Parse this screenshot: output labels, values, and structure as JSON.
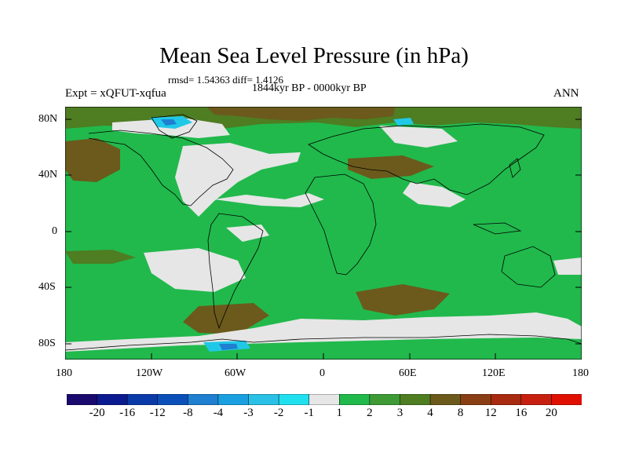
{
  "title": "Mean Sea Level Pressure (in hPa)",
  "stats": "rmsd= 1.54363 diff= 1.4126",
  "period": "1844kyr BP - 0000kyr BP",
  "experiment": "Expt = xQFUT-xqfua",
  "season": "ANN",
  "lat_ticks": [
    "80N",
    "40N",
    "0",
    "40S",
    "80S"
  ],
  "lon_ticks": [
    "180",
    "120W",
    "60W",
    "0",
    "60E",
    "120E",
    "180"
  ],
  "colorbar": {
    "labels": [
      "-20",
      "-16",
      "-12",
      "-8",
      "-4",
      "-3",
      "-2",
      "-1",
      "1",
      "2",
      "3",
      "4",
      "8",
      "12",
      "16",
      "20"
    ],
    "colors": [
      "#1a0a6e",
      "#0c1a8f",
      "#0a3aa8",
      "#0a50b8",
      "#1f7fd0",
      "#1aa0e0",
      "#2bc0e6",
      "#20e0f0",
      "#e6e6e6",
      "#21b94c",
      "#3e9a35",
      "#4e7d22",
      "#6b5a1c",
      "#8a3e14",
      "#a82a10",
      "#c82010",
      "#e01000"
    ]
  },
  "palette": {
    "neutral": "#e6e6e6",
    "green": "#21b94c",
    "olive": "#4e7d22",
    "brown": "#6b5a1c",
    "cyan": "#20c8e8",
    "blue": "#1f7fd0"
  }
}
